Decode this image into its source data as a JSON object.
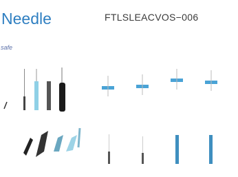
{
  "header": {
    "title": "Needle",
    "code": "FTLSLEACVOS−006",
    "brand": "safe"
  }
}
